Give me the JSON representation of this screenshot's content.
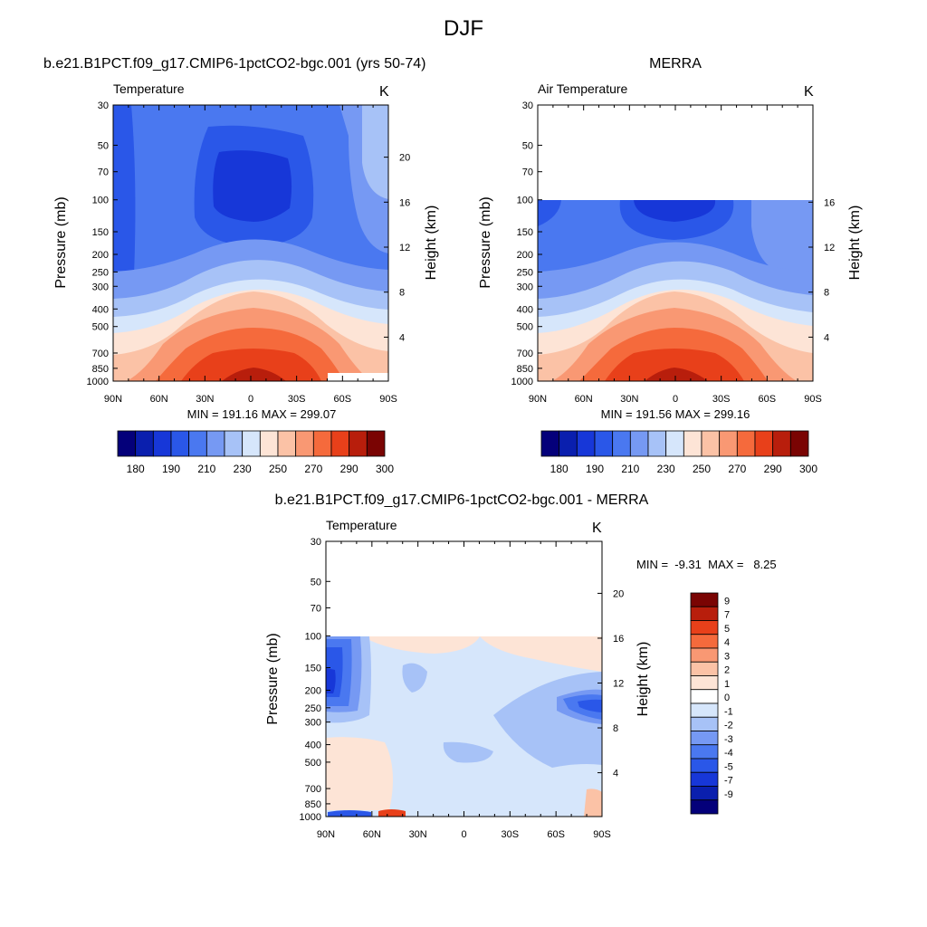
{
  "main_title": "DJF",
  "chart_data": [
    {
      "type": "heatmap",
      "title": "b.e21.B1PCT.f09_g17.CMIP6-1pctCO2-bgc.001 (yrs 50-74)",
      "subtitle": "Temperature",
      "units": "K",
      "ylabel": "Pressure (mb)",
      "y2label": "Height (km)",
      "x_ticks": [
        "90N",
        "60N",
        "30N",
        "0",
        "30S",
        "60S",
        "90S"
      ],
      "y_ticks": [
        "30",
        "50",
        "70",
        "100",
        "150",
        "200",
        "250",
        "300",
        "400",
        "500",
        "700",
        "850",
        "1000"
      ],
      "y2_ticks": [
        "20",
        "16",
        "12",
        "8",
        "4"
      ],
      "stats": "MIN = 191.16  MAX = 299.07",
      "min": 191.16,
      "max": 299.07,
      "colorbar": {
        "levels": [
          180,
          185,
          190,
          200,
          210,
          220,
          230,
          240,
          250,
          260,
          270,
          280,
          290,
          295,
          300
        ],
        "labels": [
          "180",
          "190",
          "210",
          "230",
          "250",
          "270",
          "290",
          "300"
        ],
        "colors": [
          "#04007a",
          "#0a1fae",
          "#1737d8",
          "#2a57e8",
          "#4a78f0",
          "#7699f3",
          "#a7c2f7",
          "#d6e6fb",
          "#fde4d6",
          "#fbc2a6",
          "#f99873",
          "#f56a3c",
          "#e8401a",
          "#b81e0c",
          "#7a0403"
        ]
      }
    },
    {
      "type": "heatmap",
      "title": "MERRA",
      "subtitle": "Air Temperature",
      "units": "K",
      "ylabel": "Pressure (mb)",
      "y2label": "Height (km)",
      "x_ticks": [
        "90N",
        "60N",
        "30N",
        "0",
        "30S",
        "60S",
        "90S"
      ],
      "y_ticks": [
        "30",
        "50",
        "70",
        "100",
        "150",
        "200",
        "250",
        "300",
        "400",
        "500",
        "700",
        "850",
        "1000"
      ],
      "y2_ticks": [
        "16",
        "12",
        "8",
        "4"
      ],
      "stats": "MIN = 191.56  MAX = 299.16",
      "min": 191.56,
      "max": 299.16,
      "colorbar": {
        "levels": [
          180,
          185,
          190,
          200,
          210,
          220,
          230,
          240,
          250,
          260,
          270,
          280,
          290,
          295,
          300
        ],
        "labels": [
          "180",
          "190",
          "210",
          "230",
          "250",
          "270",
          "290",
          "300"
        ],
        "colors": [
          "#04007a",
          "#0a1fae",
          "#1737d8",
          "#2a57e8",
          "#4a78f0",
          "#7699f3",
          "#a7c2f7",
          "#d6e6fb",
          "#fde4d6",
          "#fbc2a6",
          "#f99873",
          "#f56a3c",
          "#e8401a",
          "#b81e0c",
          "#7a0403"
        ]
      }
    },
    {
      "type": "heatmap",
      "title": "b.e21.B1PCT.f09_g17.CMIP6-1pctCO2-bgc.001 - MERRA",
      "subtitle": "Temperature",
      "units": "K",
      "ylabel": "Pressure (mb)",
      "y2label": "Height (km)",
      "x_ticks": [
        "90N",
        "60N",
        "30N",
        "0",
        "30S",
        "60S",
        "90S"
      ],
      "y_ticks": [
        "30",
        "50",
        "70",
        "100",
        "150",
        "200",
        "250",
        "300",
        "400",
        "500",
        "700",
        "850",
        "1000"
      ],
      "y2_ticks": [
        "20",
        "16",
        "12",
        "8",
        "4"
      ],
      "stats": "MIN =  -9.31  MAX =   8.25",
      "min": -9.31,
      "max": 8.25,
      "colorbar": {
        "labels": [
          "9",
          "7",
          "5",
          "4",
          "3",
          "2",
          "1",
          "0",
          "-1",
          "-2",
          "-3",
          "-4",
          "-5",
          "-7",
          "-9"
        ],
        "colors": [
          "#7a0403",
          "#b81e0c",
          "#e8401a",
          "#f56a3c",
          "#f99873",
          "#fbc2a6",
          "#fde4d6",
          "#ffffff",
          "#d6e6fb",
          "#a7c2f7",
          "#7699f3",
          "#4a78f0",
          "#2a57e8",
          "#1737d8",
          "#0a1fae",
          "#04007a"
        ]
      }
    }
  ]
}
